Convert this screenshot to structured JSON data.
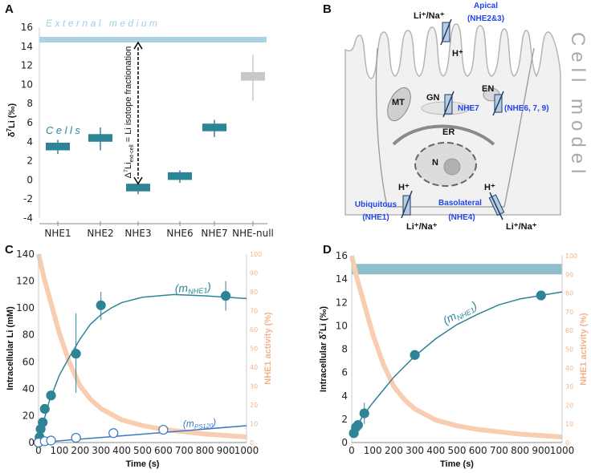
{
  "panels": {
    "a": "A",
    "b": "B",
    "c": "C",
    "d": "D"
  },
  "colors": {
    "teal": "#2e8497",
    "band": "#a9d3df",
    "band_d": "#8fbfcb",
    "gray": "#c8c8c8",
    "orange": "#f8cdb0",
    "blue_open": "#3a78c0",
    "label_blue": "#2244ee"
  },
  "chart_data": [
    {
      "id": "A",
      "type": "box",
      "ylabel": {
        "pre": "δ",
        "sup": "7",
        "post": "Li  (‰)"
      },
      "ylim": [
        -4,
        16
      ],
      "yticks": [
        -4,
        -2,
        0,
        2,
        4,
        6,
        8,
        10,
        12,
        14,
        16
      ],
      "categories": [
        "NHE1",
        "NHE2",
        "NHE3",
        "NHE6",
        "NHE7",
        "NHE-null"
      ],
      "boxes": [
        {
          "center": 3.5,
          "low": 3.1,
          "high": 3.9,
          "wlow": 2.7,
          "whigh": 4.2,
          "color": "teal"
        },
        {
          "center": 4.4,
          "low": 4.0,
          "high": 4.8,
          "wlow": 3.1,
          "whigh": 5.5,
          "color": "teal"
        },
        {
          "center": -0.8,
          "low": -1.2,
          "high": -0.4,
          "wlow": -1.5,
          "whigh": -0.4,
          "color": "teal"
        },
        {
          "center": 0.4,
          "low": 0.0,
          "high": 0.8,
          "wlow": -0.3,
          "whigh": 1.0,
          "color": "teal"
        },
        {
          "center": 5.5,
          "low": 5.1,
          "high": 5.9,
          "wlow": 4.5,
          "whigh": 6.3,
          "color": "teal"
        },
        {
          "center": 10.8,
          "low": 10.4,
          "high": 11.3,
          "wlow": 8.3,
          "whigh": 13.1,
          "color": "gray"
        }
      ],
      "external_medium": {
        "label": "External medium",
        "low": 14.4,
        "high": 15.0
      },
      "cells_label": "Cells",
      "annotation": {
        "pre": "Δ",
        "sup": "7",
        "mid": "Li",
        "sub": "ext-cell",
        "post": " = Li isotope fractionation",
        "from": 14.4,
        "to": -0.4
      }
    },
    {
      "id": "C",
      "type": "scatter+line",
      "xlabel": "Time (s)",
      "ylabel": "Intracellular Li (mM)",
      "ylabel_right": "NHE1 activity (%)",
      "xlim": [
        0,
        1000
      ],
      "ylim": [
        0,
        140
      ],
      "ylim_right": [
        0,
        100
      ],
      "xticks": [
        0,
        100,
        200,
        300,
        400,
        500,
        600,
        700,
        800,
        900,
        1000
      ],
      "yticks": [
        0,
        20,
        40,
        60,
        80,
        100,
        120,
        140
      ],
      "yticks_right": [
        0,
        10,
        20,
        30,
        40,
        50,
        60,
        70,
        80,
        90,
        100
      ],
      "series": [
        {
          "name": "NHE1",
          "label": {
            "pre": "(m",
            "sub": "NHE1",
            "post": ")"
          },
          "marker": "filled",
          "points": [
            [
              0,
              0,
              0,
              0
            ],
            [
              5,
              4,
              4,
              4
            ],
            [
              10,
              10,
              10,
              10
            ],
            [
              20,
              15,
              15,
              15
            ],
            [
              30,
              25,
              25,
              25
            ],
            [
              60,
              35,
              35,
              35
            ],
            [
              180,
              66,
              37,
              96
            ],
            [
              300,
              102,
              91,
              112
            ],
            [
              900,
              109,
              98,
              120
            ]
          ],
          "fit": [
            [
              0,
              0
            ],
            [
              25,
              16
            ],
            [
              50,
              30
            ],
            [
              100,
              50
            ],
            [
              150,
              64
            ],
            [
              200,
              77
            ],
            [
              250,
              88
            ],
            [
              300,
              95
            ],
            [
              350,
              100
            ],
            [
              400,
              104
            ],
            [
              500,
              108
            ],
            [
              650,
              110
            ],
            [
              800,
              109
            ],
            [
              1000,
              107
            ]
          ]
        },
        {
          "name": "PS120",
          "label": {
            "pre": "(m",
            "sub": "PS120",
            "post": ")"
          },
          "marker": "open",
          "points": [
            [
              0,
              0
            ],
            [
              30,
              1
            ],
            [
              60,
              1.5
            ],
            [
              180,
              3.5
            ],
            [
              360,
              7
            ],
            [
              600,
              9.5
            ]
          ],
          "fit": [
            [
              0,
              0
            ],
            [
              1000,
              12.5
            ]
          ]
        }
      ],
      "activity": [
        [
          0,
          100
        ],
        [
          25,
          88
        ],
        [
          50,
          78
        ],
        [
          100,
          58
        ],
        [
          150,
          42
        ],
        [
          200,
          30
        ],
        [
          250,
          23
        ],
        [
          300,
          18
        ],
        [
          400,
          12
        ],
        [
          500,
          9
        ],
        [
          600,
          7
        ],
        [
          800,
          4.5
        ],
        [
          1000,
          3
        ]
      ]
    },
    {
      "id": "D",
      "type": "scatter+line",
      "xlabel": "Time (s)",
      "ylabel": {
        "pre": "Intracellular δ",
        "sup": "7",
        "post": "Li (‰)"
      },
      "ylabel_right": "NHE1 activity (%)",
      "xlim": [
        0,
        1000
      ],
      "ylim": [
        0,
        16
      ],
      "ylim_right": [
        0,
        100
      ],
      "xticks": [
        0,
        100,
        200,
        300,
        400,
        500,
        600,
        700,
        800,
        900,
        1000
      ],
      "yticks": [
        0,
        2,
        4,
        6,
        8,
        10,
        12,
        14,
        16
      ],
      "yticks_right": [
        0,
        10,
        20,
        30,
        40,
        50,
        60,
        70,
        80,
        90,
        100
      ],
      "external_band": {
        "low": 14.4,
        "high": 15.3
      },
      "series": [
        {
          "name": "NHE1",
          "label": {
            "pre": "(m",
            "sub": "NHE1",
            "post": ")"
          },
          "marker": "filled",
          "points": [
            [
              10,
              0.8,
              0.8,
              0.8
            ],
            [
              20,
              1.3,
              1.0,
              1.8
            ],
            [
              30,
              1.5,
              1.5,
              1.5
            ],
            [
              60,
              2.5,
              1.6,
              3.4
            ],
            [
              300,
              7.5,
              7.5,
              7.5
            ],
            [
              900,
              12.6,
              12.6,
              12.6
            ]
          ],
          "fit": [
            [
              0,
              0.5
            ],
            [
              25,
              1.4
            ],
            [
              50,
              2.2
            ],
            [
              100,
              3.4
            ],
            [
              150,
              4.5
            ],
            [
              200,
              5.6
            ],
            [
              300,
              7.4
            ],
            [
              400,
              8.9
            ],
            [
              500,
              10.1
            ],
            [
              600,
              11.0
            ],
            [
              700,
              11.8
            ],
            [
              800,
              12.3
            ],
            [
              900,
              12.6
            ],
            [
              1000,
              12.9
            ]
          ]
        }
      ],
      "activity": [
        [
          0,
          100
        ],
        [
          25,
          88
        ],
        [
          50,
          78
        ],
        [
          100,
          58
        ],
        [
          150,
          42
        ],
        [
          200,
          30
        ],
        [
          250,
          23
        ],
        [
          300,
          18
        ],
        [
          400,
          12
        ],
        [
          500,
          9
        ],
        [
          600,
          7
        ],
        [
          800,
          4.5
        ],
        [
          1000,
          3
        ]
      ]
    }
  ],
  "diagram": {
    "title": "Cell model",
    "labels": {
      "apical": "Apical",
      "apical_sub": "(NHE2&3)",
      "li_na_top": "Li⁺/Na⁺",
      "h_top": "H⁺",
      "mt": "MT",
      "gn": "GN",
      "nhe7": "NHE7",
      "en": "EN",
      "nhe679": "(NHE6, 7, 9)",
      "er": "ER",
      "n": "N",
      "h_left": "H⁺",
      "ubiquitous": "Ubiquitous",
      "ubiquitous_sub": "(NHE1)",
      "li_na_left": "Li⁺/Na⁺",
      "basolateral": "Basolateral",
      "basolateral_sub": "(NHE4)",
      "h_right": "H⁺",
      "li_na_right": "Li⁺/Na⁺"
    }
  }
}
